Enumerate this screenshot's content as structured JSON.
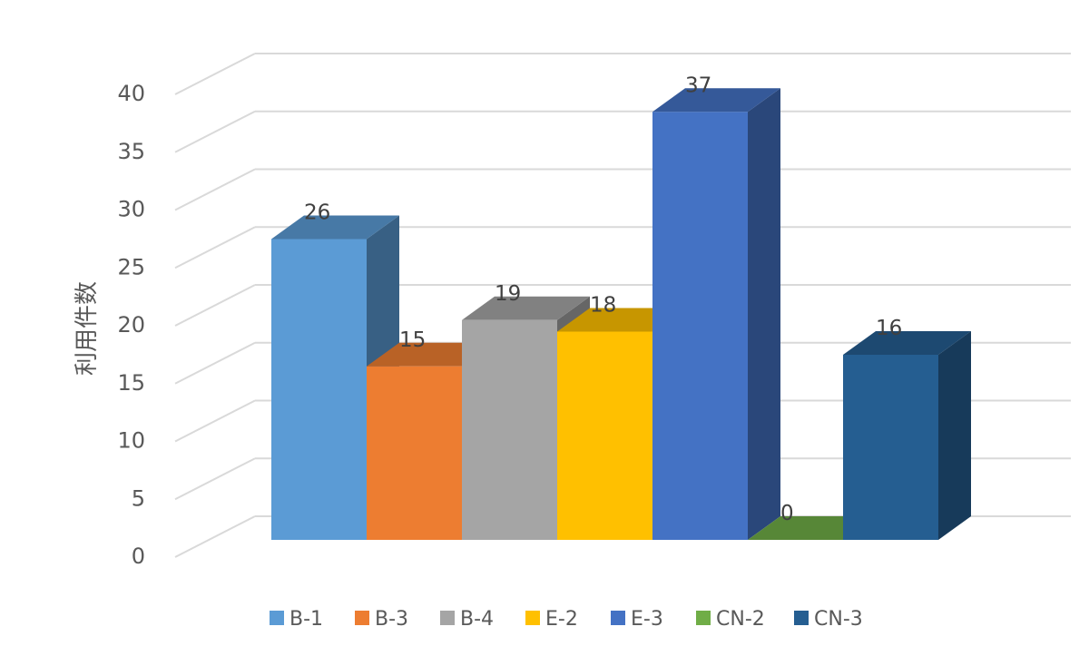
{
  "chart_data": {
    "type": "bar",
    "ylabel": "利用件数",
    "ylim": [
      0,
      40
    ],
    "yticks": [
      0,
      5,
      10,
      15,
      20,
      25,
      30,
      35,
      40
    ],
    "grid": true,
    "legend": "bottom",
    "series": [
      {
        "name": "B-1",
        "value": 26,
        "color": "#5B9BD5"
      },
      {
        "name": "B-3",
        "value": 15,
        "color": "#ED7D31"
      },
      {
        "name": "B-4",
        "value": 19,
        "color": "#A5A5A5"
      },
      {
        "name": "E-2",
        "value": 18,
        "color": "#FFC000"
      },
      {
        "name": "E-3",
        "value": 37,
        "color": "#4472C4"
      },
      {
        "name": "CN-2",
        "value": 0,
        "color": "#70AD47"
      },
      {
        "name": "CN-3",
        "value": 16,
        "color": "#255E91"
      }
    ]
  }
}
